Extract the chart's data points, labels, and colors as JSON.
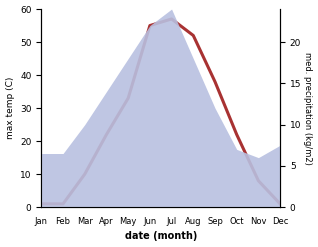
{
  "months": [
    "Jan",
    "Feb",
    "Mar",
    "Apr",
    "May",
    "Jun",
    "Jul",
    "Aug",
    "Sep",
    "Oct",
    "Nov",
    "Dec"
  ],
  "month_indices": [
    1,
    2,
    3,
    4,
    5,
    6,
    7,
    8,
    9,
    10,
    11,
    12
  ],
  "temperature": [
    1,
    1,
    10,
    22,
    33,
    55,
    57,
    52,
    38,
    22,
    8,
    1
  ],
  "precipitation": [
    6.5,
    6.5,
    10,
    14,
    18,
    22,
    24,
    18,
    12,
    7,
    6,
    7.5
  ],
  "temp_color": "#a83232",
  "precip_fill_color": "#b8c0e0",
  "temp_ylim": [
    0,
    60
  ],
  "precip_ylim": [
    0,
    24
  ],
  "temp_yticks": [
    0,
    10,
    20,
    30,
    40,
    50,
    60
  ],
  "precip_yticks": [
    0,
    5,
    10,
    15,
    20
  ],
  "xlabel": "date (month)",
  "ylabel_left": "max temp (C)",
  "ylabel_right": "med. precipitation (kg/m2)",
  "background_color": "#ffffff",
  "line_width": 2.2
}
